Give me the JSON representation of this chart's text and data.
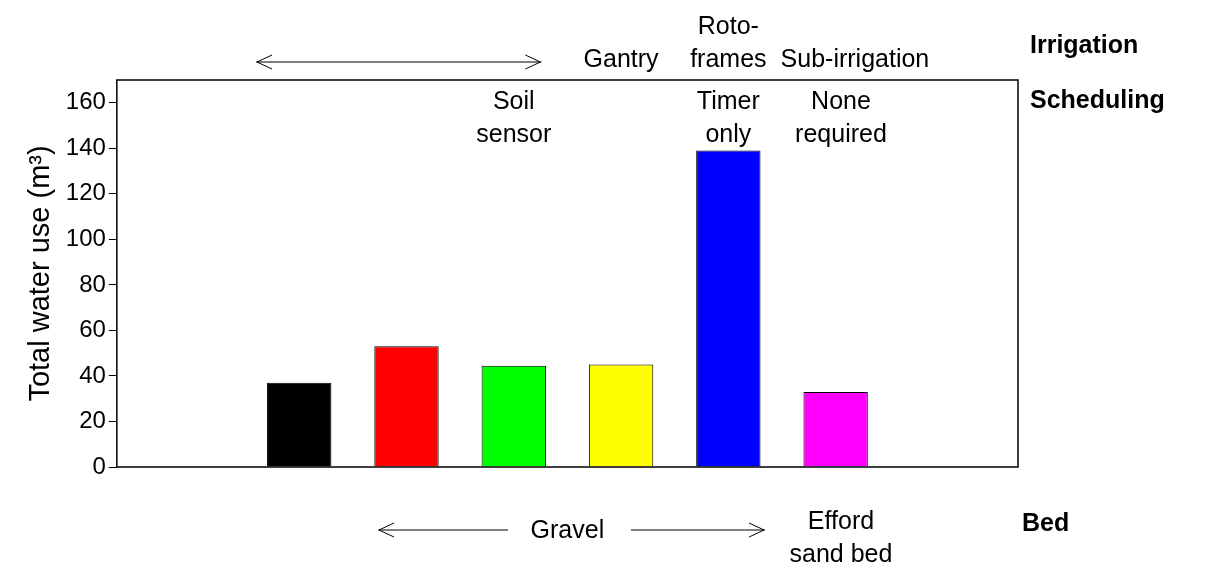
{
  "chart_data": {
    "type": "bar",
    "ylabel": "Total water use (m³)",
    "categories": [
      null,
      null,
      null,
      null,
      null,
      null
    ],
    "values": [
      37,
      53,
      44.5,
      45,
      139,
      33
    ],
    "colors": [
      "#000000",
      "#ff0000",
      "#00ff00",
      "#ffff00",
      "#0000ff",
      "#ff00ff"
    ],
    "ylim": [
      0,
      170
    ],
    "yticks": [
      0,
      20,
      40,
      60,
      80,
      100,
      120,
      140,
      160
    ],
    "tick_labels": "y",
    "legend": false,
    "annotations": [
      "Irrigation",
      "Scheduling",
      "Bed",
      "Gantry",
      "Roto-frames",
      "Sub-irrigation",
      "Soil sensor",
      "Timer only",
      "None required",
      "Gravel",
      "Efford sand bed"
    ]
  }
}
